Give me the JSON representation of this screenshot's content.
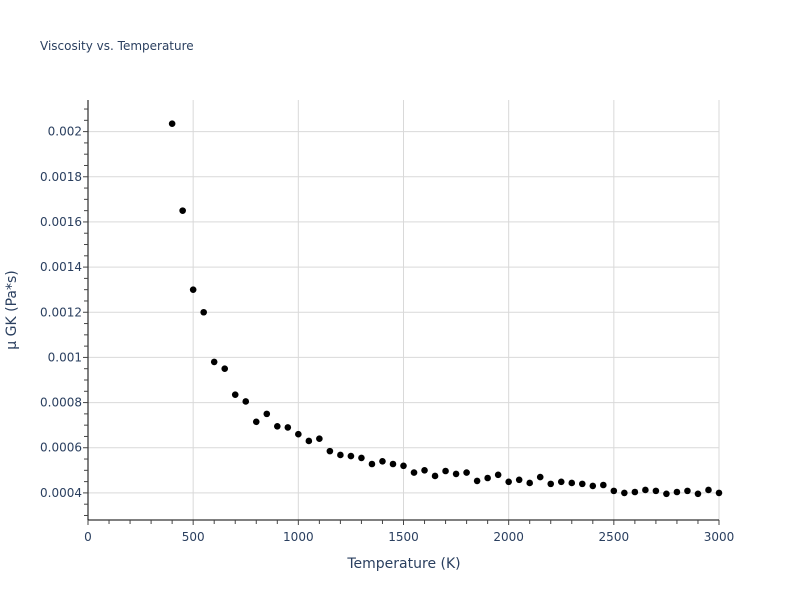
{
  "chart_data": {
    "type": "scatter",
    "title": "Viscosity vs. Temperature",
    "xlabel": "Temperature (K)",
    "ylabel": "μ GK (Pa*s)",
    "xlim": [
      0,
      3000
    ],
    "ylim": [
      0.00028,
      0.00214
    ],
    "grid": true,
    "marker_color": "#000000",
    "grid_color": "#d9d9d9",
    "text_color": "#2a3f5f",
    "x_ticks": [
      0,
      500,
      1000,
      1500,
      2000,
      2500,
      3000
    ],
    "x_tick_labels": [
      "0",
      "500",
      "1000",
      "1500",
      "2000",
      "2500",
      "3000"
    ],
    "y_ticks": [
      0.0004,
      0.0006,
      0.0008,
      0.001,
      0.0012,
      0.0014,
      0.0016,
      0.0018,
      0.002
    ],
    "y_tick_labels": [
      "0.0004",
      "0.0006",
      "0.0008",
      "0.001",
      "0.0012",
      "0.0014",
      "0.0016",
      "0.0018",
      "0.002"
    ],
    "x": [
      400,
      450,
      500,
      550,
      600,
      650,
      700,
      750,
      800,
      850,
      900,
      950,
      1000,
      1050,
      1100,
      1150,
      1200,
      1250,
      1300,
      1350,
      1400,
      1450,
      1500,
      1550,
      1600,
      1650,
      1700,
      1750,
      1800,
      1850,
      1900,
      1950,
      2000,
      2050,
      2100,
      2150,
      2200,
      2250,
      2300,
      2350,
      2400,
      2450,
      2500,
      2550,
      2600,
      2650,
      2700,
      2750,
      2800,
      2850,
      2900,
      2950,
      3000
    ],
    "y": [
      0.002035,
      0.00165,
      0.0013,
      0.0012,
      0.00098,
      0.00095,
      0.000835,
      0.000805,
      0.000715,
      0.00075,
      0.000695,
      0.00069,
      0.00066,
      0.00063,
      0.00064,
      0.000585,
      0.000568,
      0.000563,
      0.000555,
      0.000528,
      0.00054,
      0.000528,
      0.00052,
      0.00049,
      0.0005,
      0.000475,
      0.000497,
      0.000484,
      0.00049,
      0.000453,
      0.000466,
      0.00048,
      0.000449,
      0.000458,
      0.000444,
      0.00047,
      0.00044,
      0.000449,
      0.000444,
      0.00044,
      0.000431,
      0.000435,
      0.000409,
      0.0004,
      0.000404,
      0.000413,
      0.000409,
      0.000396,
      0.000404,
      0.000409,
      0.000396,
      0.000413,
      0.0004
    ]
  }
}
